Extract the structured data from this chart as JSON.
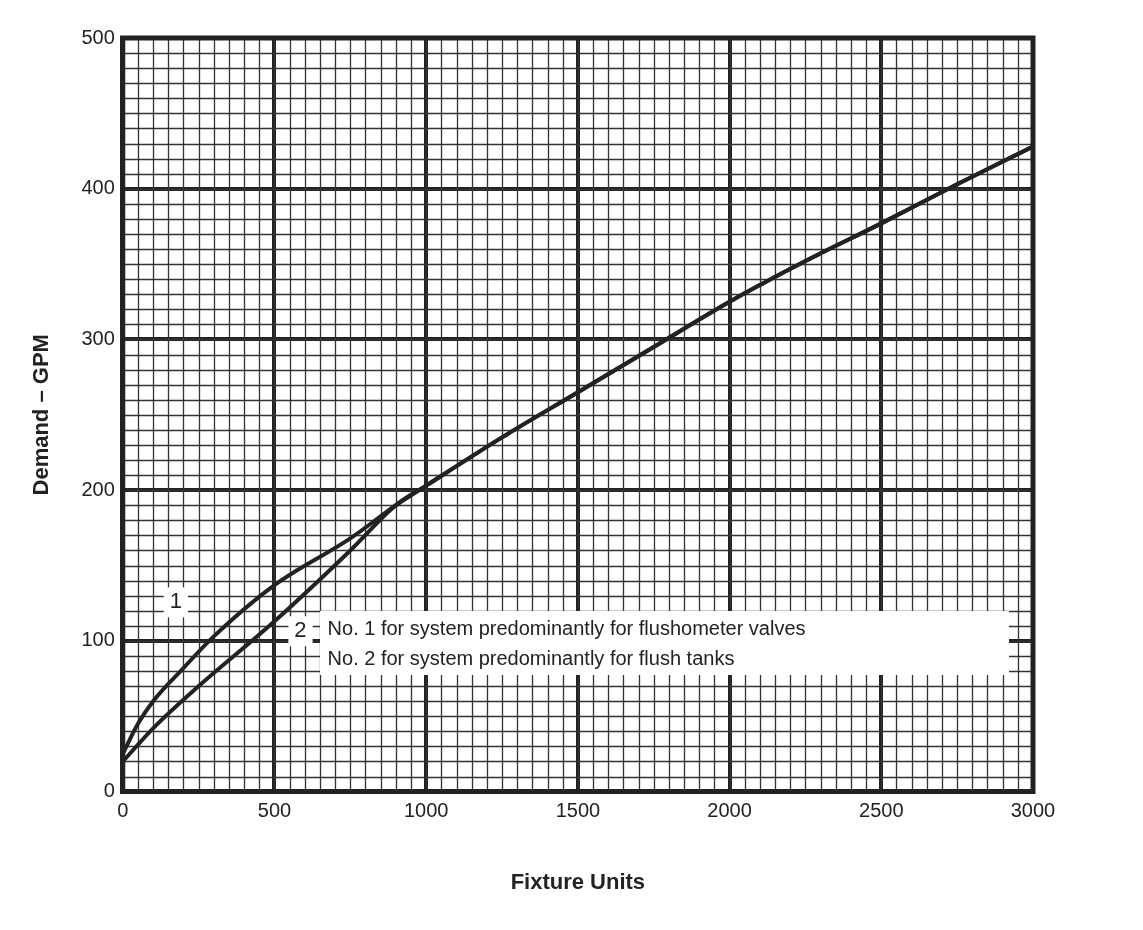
{
  "chart_data": {
    "type": "line",
    "xlabel": "Fixture Units",
    "ylabel": "Demand – GPM",
    "xlim": [
      0,
      3000
    ],
    "xticks": [
      0,
      500,
      1000,
      1500,
      2000,
      2500,
      3000
    ],
    "ylim": [
      0,
      500
    ],
    "yticks": [
      0,
      100,
      200,
      300,
      400,
      500
    ],
    "grid": true,
    "legend": false,
    "marker": "none",
    "line_style": "solid",
    "series": [
      {
        "name": "1",
        "color": "#222222",
        "x": [
          0,
          50,
          100,
          200,
          300,
          500,
          750,
          900,
          1000,
          1250,
          1500,
          1750,
          2000,
          2250,
          2500,
          2750,
          3000
        ],
        "values": [
          25,
          45,
          60,
          82,
          103,
          137,
          168,
          190,
          203,
          235,
          265,
          295,
          325,
          352,
          377,
          403,
          428
        ]
      },
      {
        "name": "2",
        "color": "#222222",
        "x": [
          0,
          100,
          250,
          500,
          750,
          900,
          1000,
          1250,
          1500,
          1750,
          2000,
          2250,
          2500,
          2750,
          3000
        ],
        "values": [
          20,
          42,
          70,
          113,
          160,
          190,
          203,
          235,
          265,
          295,
          325,
          352,
          377,
          403,
          428
        ]
      }
    ],
    "annotations": [
      "No. 1 for system predominantly for flushometer valves",
      "No. 2 for system predominantly for flush tanks"
    ]
  }
}
